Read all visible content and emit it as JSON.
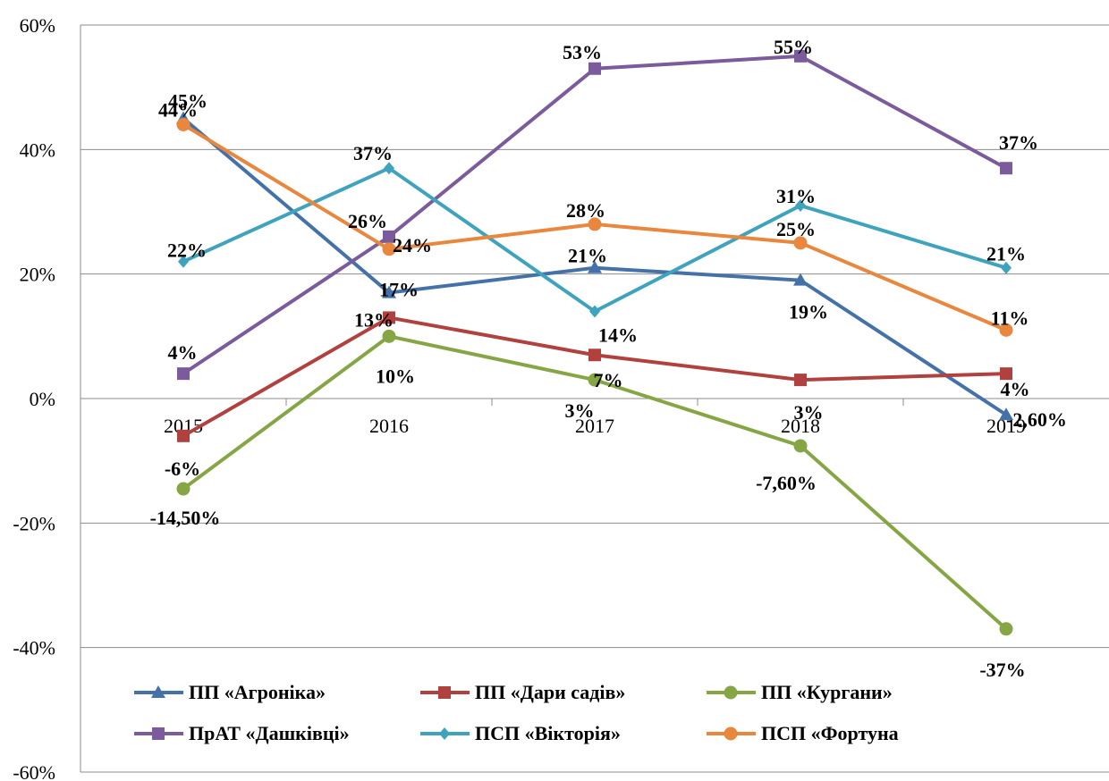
{
  "chart_data": {
    "type": "line",
    "x": [
      "2015",
      "2016",
      "2017",
      "2018",
      "2019"
    ],
    "ylim": [
      -60,
      60
    ],
    "yticks": [
      60,
      40,
      20,
      0,
      -20,
      -40,
      -60
    ],
    "ytick_labels": [
      "60%",
      "40%",
      "20%",
      "0%",
      "-20%",
      "-40%",
      "-60%"
    ],
    "grid": true,
    "legend_position": "bottom-inside",
    "series": [
      {
        "name": "ПП «Агроніка»",
        "color": "#4472A8",
        "marker": "triangle",
        "values": [
          45,
          17,
          21,
          19,
          -2.6
        ],
        "labels": [
          "45%",
          "17%",
          "21%",
          "19%",
          "-2,60%"
        ]
      },
      {
        "name": "ПП «Дари садів»",
        "color": "#B0413E",
        "marker": "square",
        "values": [
          -6,
          13,
          7,
          3,
          4
        ],
        "labels": [
          "-6%",
          "13%",
          "7%",
          "3%",
          "4%"
        ]
      },
      {
        "name": "ПП «Кургани»",
        "color": "#86A646",
        "marker": "circle",
        "values": [
          -14.5,
          10,
          3,
          -7.6,
          -37
        ],
        "labels": [
          "-14,50%",
          "10%",
          "3%",
          "-7,60%",
          "-37%"
        ]
      },
      {
        "name": "ПрАТ «Дашківці»",
        "color": "#7B5B9C",
        "marker": "square",
        "values": [
          4,
          26,
          53,
          55,
          37
        ],
        "labels": [
          "4%",
          "26%",
          "53%",
          "55%",
          "37%"
        ]
      },
      {
        "name": "ПСП «Вікторія»",
        "color": "#3FA3BE",
        "marker": "diamond",
        "values": [
          22,
          37,
          14,
          31,
          21
        ],
        "labels": [
          "22%",
          "37%",
          "14%",
          "31%",
          "21%"
        ]
      },
      {
        "name": "ПСП «Фортуна",
        "color": "#E8873D",
        "marker": "circle",
        "values": [
          44,
          24,
          28,
          25,
          11
        ],
        "labels": [
          "44%",
          "24%",
          "28%",
          "25%",
          "11%"
        ]
      }
    ]
  }
}
